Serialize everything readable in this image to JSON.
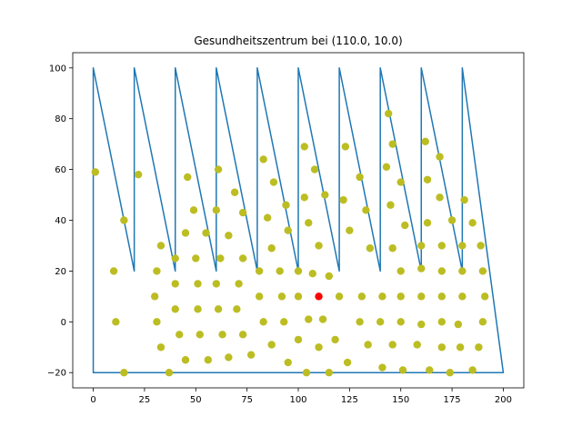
{
  "chart_data": {
    "type": "scatter",
    "title": "Gesundheitszentrum bei (110.0, 10.0)",
    "xlabel": "",
    "ylabel": "",
    "xlim": [
      -10,
      210
    ],
    "ylim": [
      -26,
      106
    ],
    "x_ticks": [
      0,
      25,
      50,
      75,
      100,
      125,
      150,
      175,
      200
    ],
    "y_ticks": [
      -20,
      0,
      20,
      40,
      60,
      80,
      100
    ],
    "grid": false,
    "colors": {
      "path": "#1f77b4",
      "points": "#bcbd22",
      "center": "#ff0000"
    },
    "series": [
      {
        "kind": "line",
        "points": [
          [
            0,
            20
          ],
          [
            0,
            100
          ],
          [
            20,
            20
          ],
          [
            20,
            100
          ],
          [
            40,
            20
          ],
          [
            40,
            100
          ],
          [
            60,
            20
          ],
          [
            60,
            100
          ],
          [
            80,
            20
          ],
          [
            80,
            100
          ],
          [
            100,
            20
          ],
          [
            100,
            100
          ],
          [
            120,
            20
          ],
          [
            120,
            100
          ],
          [
            140,
            20
          ],
          [
            140,
            100
          ],
          [
            160,
            20
          ],
          [
            160,
            100
          ],
          [
            180,
            20
          ],
          [
            180,
            100
          ],
          [
            200,
            -20
          ],
          [
            0,
            -20
          ],
          [
            0,
            20
          ]
        ]
      },
      {
        "kind": "scatter",
        "points": [
          [
            1,
            59
          ],
          [
            22,
            58
          ],
          [
            15,
            40
          ],
          [
            10,
            20
          ],
          [
            11,
            0
          ],
          [
            15,
            -20
          ],
          [
            37,
            -20
          ],
          [
            33,
            30
          ],
          [
            31,
            20
          ],
          [
            30,
            10
          ],
          [
            31,
            0
          ],
          [
            33,
            -10
          ],
          [
            40,
            25
          ],
          [
            40,
            15
          ],
          [
            40,
            5
          ],
          [
            42,
            -5
          ],
          [
            45,
            -15
          ],
          [
            46,
            57
          ],
          [
            49,
            44
          ],
          [
            45,
            35
          ],
          [
            50,
            25
          ],
          [
            51,
            15
          ],
          [
            51,
            5
          ],
          [
            52,
            -5
          ],
          [
            56,
            -15
          ],
          [
            55,
            35
          ],
          [
            61,
            60
          ],
          [
            60,
            44
          ],
          [
            62,
            25
          ],
          [
            60,
            15
          ],
          [
            61,
            5
          ],
          [
            63,
            -5
          ],
          [
            66,
            -14
          ],
          [
            69,
            51
          ],
          [
            73,
            43
          ],
          [
            66,
            34
          ],
          [
            73,
            25
          ],
          [
            71,
            15
          ],
          [
            70,
            5
          ],
          [
            73,
            -5
          ],
          [
            77,
            -13
          ],
          [
            83,
            64
          ],
          [
            85,
            41
          ],
          [
            81,
            20
          ],
          [
            81,
            10
          ],
          [
            83,
            0
          ],
          [
            87,
            -9
          ],
          [
            88,
            55
          ],
          [
            94,
            46
          ],
          [
            95,
            36
          ],
          [
            87,
            29
          ],
          [
            91,
            20
          ],
          [
            92,
            10
          ],
          [
            93,
            0
          ],
          [
            95,
            -16
          ],
          [
            103,
            69
          ],
          [
            108,
            60
          ],
          [
            103,
            49
          ],
          [
            105,
            39
          ],
          [
            110,
            30
          ],
          [
            100,
            20
          ],
          [
            100,
            10
          ],
          [
            105,
            1
          ],
          [
            100,
            -7
          ],
          [
            110,
            -10
          ],
          [
            104,
            -20
          ],
          [
            113,
            50
          ],
          [
            107,
            19
          ],
          [
            115,
            18
          ],
          [
            112,
            1
          ],
          [
            118,
            -7
          ],
          [
            115,
            -20
          ],
          [
            123,
            69
          ],
          [
            122,
            48
          ],
          [
            125,
            36
          ],
          [
            120,
            10
          ],
          [
            130,
            57
          ],
          [
            133,
            44
          ],
          [
            135,
            29
          ],
          [
            131,
            10
          ],
          [
            130,
            0
          ],
          [
            124,
            -16
          ],
          [
            134,
            -9
          ],
          [
            144,
            82
          ],
          [
            146,
            70
          ],
          [
            143,
            61
          ],
          [
            145,
            46
          ],
          [
            150,
            55
          ],
          [
            152,
            38
          ],
          [
            146,
            29
          ],
          [
            141,
            10
          ],
          [
            140,
            0
          ],
          [
            141,
            -18
          ],
          [
            146,
            -9
          ],
          [
            150,
            20
          ],
          [
            150,
            10
          ],
          [
            150,
            0
          ],
          [
            151,
            -19
          ],
          [
            160,
            30
          ],
          [
            160,
            21
          ],
          [
            160,
            10
          ],
          [
            160,
            -1
          ],
          [
            158,
            -9
          ],
          [
            162,
            71
          ],
          [
            163,
            56
          ],
          [
            163,
            39
          ],
          [
            170,
            30
          ],
          [
            170,
            20
          ],
          [
            170,
            10
          ],
          [
            170,
            0
          ],
          [
            170,
            -10
          ],
          [
            164,
            -19
          ],
          [
            169,
            65
          ],
          [
            169,
            49
          ],
          [
            175,
            40
          ],
          [
            180,
            30
          ],
          [
            180,
            20
          ],
          [
            180,
            10
          ],
          [
            178,
            -1
          ],
          [
            179,
            -10
          ],
          [
            174,
            -20
          ],
          [
            181,
            48
          ],
          [
            185,
            39
          ],
          [
            189,
            30
          ],
          [
            190,
            20
          ],
          [
            191,
            10
          ],
          [
            190,
            0
          ],
          [
            188,
            -10
          ],
          [
            185,
            -19
          ]
        ]
      },
      {
        "kind": "scatter",
        "name": "center",
        "points": [
          [
            110,
            10
          ]
        ]
      }
    ]
  }
}
